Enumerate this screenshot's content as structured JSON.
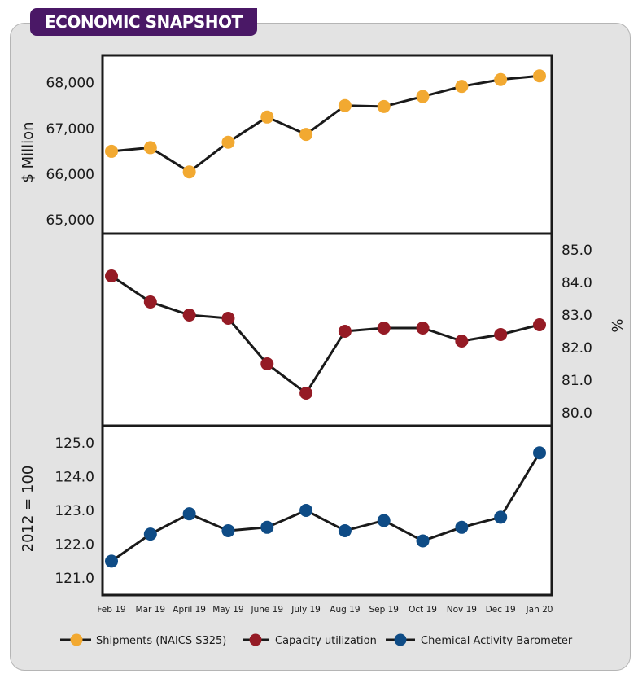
{
  "header": {
    "title": "ECONOMIC SNAPSHOT"
  },
  "chart_data": {
    "type": "line",
    "categories": [
      "Feb 19",
      "Mar 19",
      "April 19",
      "May 19",
      "June 19",
      "July 19",
      "Aug 19",
      "Sep 19",
      "Oct 19",
      "Nov 19",
      "Dec 19",
      "Jan 20"
    ],
    "panels": [
      {
        "series_name": "Shipments (NAICS S325)",
        "color": "#f2a931",
        "ylabel": "$ Million",
        "axis_side": "left",
        "ylim": [
          64700,
          68600
        ],
        "ticks": [
          65000,
          66000,
          67000,
          68000
        ],
        "tick_labels": [
          "65,000",
          "66,000",
          "67,000",
          "68,000"
        ],
        "values": [
          66500,
          66580,
          66050,
          66700,
          67250,
          66870,
          67500,
          67480,
          67700,
          67920,
          68070,
          68150
        ]
      },
      {
        "series_name": "Capacity utilization",
        "color": "#951b25",
        "ylabel": "%",
        "axis_side": "right",
        "ylim": [
          79.6,
          85.5
        ],
        "ticks": [
          80.0,
          81.0,
          82.0,
          83.0,
          84.0,
          85.0
        ],
        "tick_labels": [
          "80.0",
          "81.0",
          "82.0",
          "83.0",
          "84.0",
          "85.0"
        ],
        "values": [
          84.2,
          83.4,
          83.0,
          82.9,
          81.5,
          80.6,
          82.5,
          82.6,
          82.6,
          82.2,
          82.4,
          82.7
        ]
      },
      {
        "series_name": "Chemical Activity Barometer",
        "color": "#0f4c86",
        "ylabel": "2012 = 100",
        "axis_side": "left",
        "ylim": [
          120.5,
          125.5
        ],
        "ticks": [
          121.0,
          122.0,
          123.0,
          124.0,
          125.0
        ],
        "tick_labels": [
          "121.0",
          "122.0",
          "123.0",
          "124.0",
          "125.0"
        ],
        "values": [
          121.5,
          122.3,
          122.9,
          122.4,
          122.5,
          123.0,
          122.4,
          122.7,
          122.1,
          122.5,
          122.8,
          124.7
        ]
      }
    ],
    "legend": [
      "Shipments (NAICS S325)",
      "Capacity utilization",
      "Chemical Activity Barometer"
    ],
    "legend_position": "bottom"
  }
}
